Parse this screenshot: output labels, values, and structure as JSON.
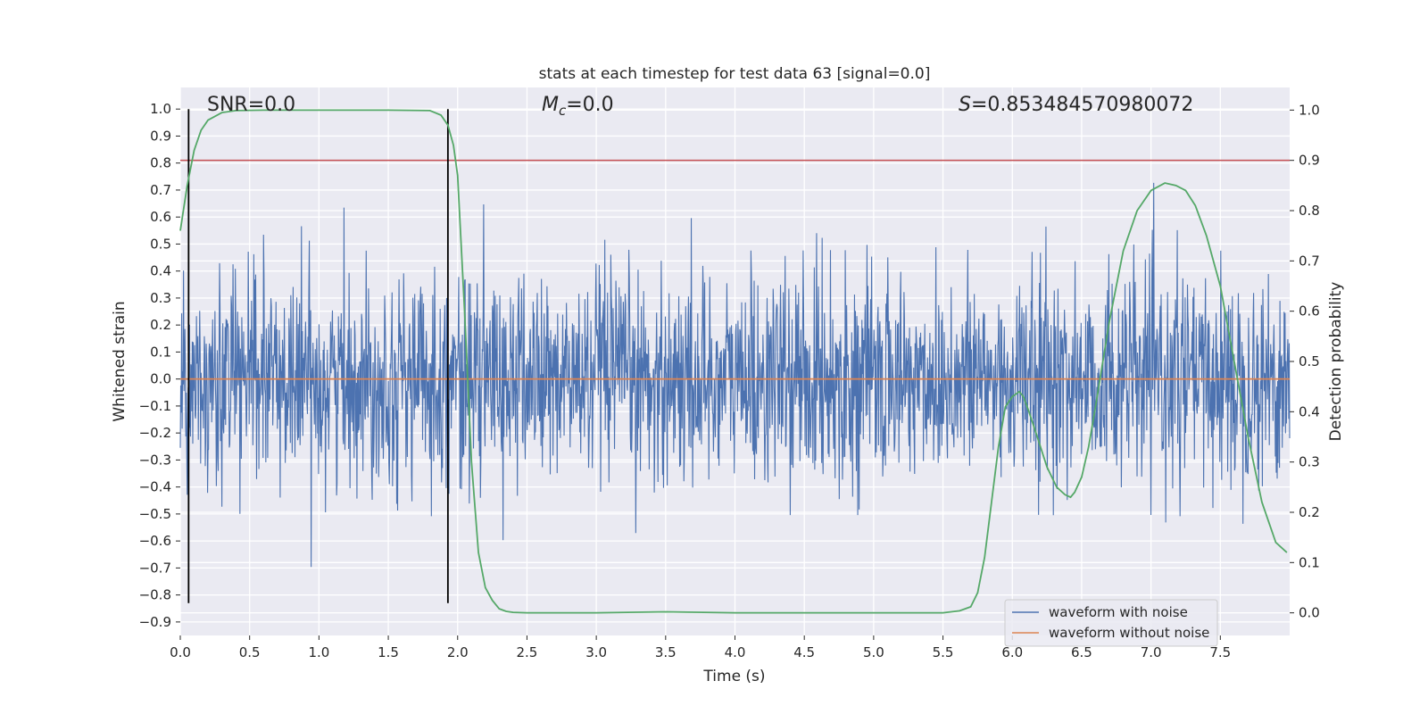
{
  "chart_data": {
    "type": "line",
    "title": "stats at each timestep for test data 63 [signal=0.0]",
    "xlabel": "Time (s)",
    "ylabel_left": "Whitened strain",
    "ylabel_right": "Detection probability",
    "xlim": [
      0.0,
      8.0
    ],
    "ylim_left": [
      -0.95,
      1.08
    ],
    "ylim_right": [
      -0.045,
      1.045
    ],
    "xticks": [
      "0.0",
      "0.5",
      "1.0",
      "1.5",
      "2.0",
      "2.5",
      "3.0",
      "3.5",
      "4.0",
      "4.5",
      "5.0",
      "5.5",
      "6.0",
      "6.5",
      "7.0",
      "7.5"
    ],
    "yticks_left": [
      "−0.9",
      "−0.8",
      "−0.7",
      "−0.6",
      "−0.5",
      "−0.4",
      "−0.3",
      "−0.2",
      "−0.1",
      "0.0",
      "0.1",
      "0.2",
      "0.3",
      "0.4",
      "0.5",
      "0.6",
      "0.7",
      "0.8",
      "0.9",
      "1.0"
    ],
    "yticks_right": [
      "0.0",
      "0.1",
      "0.2",
      "0.3",
      "0.4",
      "0.5",
      "0.6",
      "0.7",
      "0.8",
      "0.9",
      "1.0"
    ],
    "grid": true,
    "legend_position": "lower-right",
    "annotations": {
      "snr": "SNR=0.0",
      "mc_symbol": "M",
      "mc_sub": "c",
      "mc_value": "=0.0",
      "s_symbol": "S",
      "s_value": "=0.853484570980072"
    },
    "series": [
      {
        "name": "waveform with noise",
        "axis": "left",
        "color": "#4c72b0",
        "kind": "dense noise, amplitude ~0.3 typical with peaks up to ~1.0 and troughs down to ~-0.83"
      },
      {
        "name": "waveform without noise",
        "axis": "left",
        "color": "#dd8452",
        "value": 0.0
      },
      {
        "axis": "right",
        "color": "#55a868",
        "x": [
          0.0,
          0.05,
          0.1,
          0.15,
          0.2,
          0.3,
          0.4,
          0.6,
          1.0,
          1.5,
          1.8,
          1.88,
          1.93,
          1.97,
          2.0,
          2.05,
          2.1,
          2.15,
          2.2,
          2.25,
          2.3,
          2.35,
          2.4,
          2.5,
          3.0,
          3.5,
          4.0,
          4.5,
          5.0,
          5.5,
          5.62,
          5.7,
          5.75,
          5.8,
          5.85,
          5.9,
          5.95,
          6.0,
          6.05,
          6.08,
          6.12,
          6.18,
          6.25,
          6.32,
          6.38,
          6.42,
          6.45,
          6.5,
          6.55,
          6.6,
          6.7,
          6.8,
          6.9,
          7.0,
          7.1,
          7.18,
          7.25,
          7.32,
          7.4,
          7.5,
          7.6,
          7.7,
          7.8,
          7.9,
          7.98
        ],
        "y": [
          0.76,
          0.85,
          0.92,
          0.96,
          0.98,
          0.995,
          0.999,
          1.0,
          1.0,
          1.0,
          0.999,
          0.99,
          0.97,
          0.93,
          0.87,
          0.6,
          0.3,
          0.12,
          0.05,
          0.025,
          0.008,
          0.003,
          0.001,
          0.0,
          0.0,
          0.002,
          0.0,
          0.0,
          0.0,
          0.0,
          0.004,
          0.012,
          0.04,
          0.11,
          0.22,
          0.33,
          0.41,
          0.43,
          0.44,
          0.43,
          0.4,
          0.35,
          0.29,
          0.25,
          0.235,
          0.23,
          0.24,
          0.27,
          0.33,
          0.41,
          0.58,
          0.72,
          0.8,
          0.84,
          0.855,
          0.85,
          0.84,
          0.81,
          0.75,
          0.65,
          0.5,
          0.35,
          0.22,
          0.14,
          0.12
        ]
      }
    ],
    "threshold_line": {
      "axis": "right",
      "value": 0.9,
      "color": "#c44e52"
    },
    "vertical_markers": {
      "x": [
        0.06,
        1.93
      ],
      "color": "#000000"
    }
  }
}
